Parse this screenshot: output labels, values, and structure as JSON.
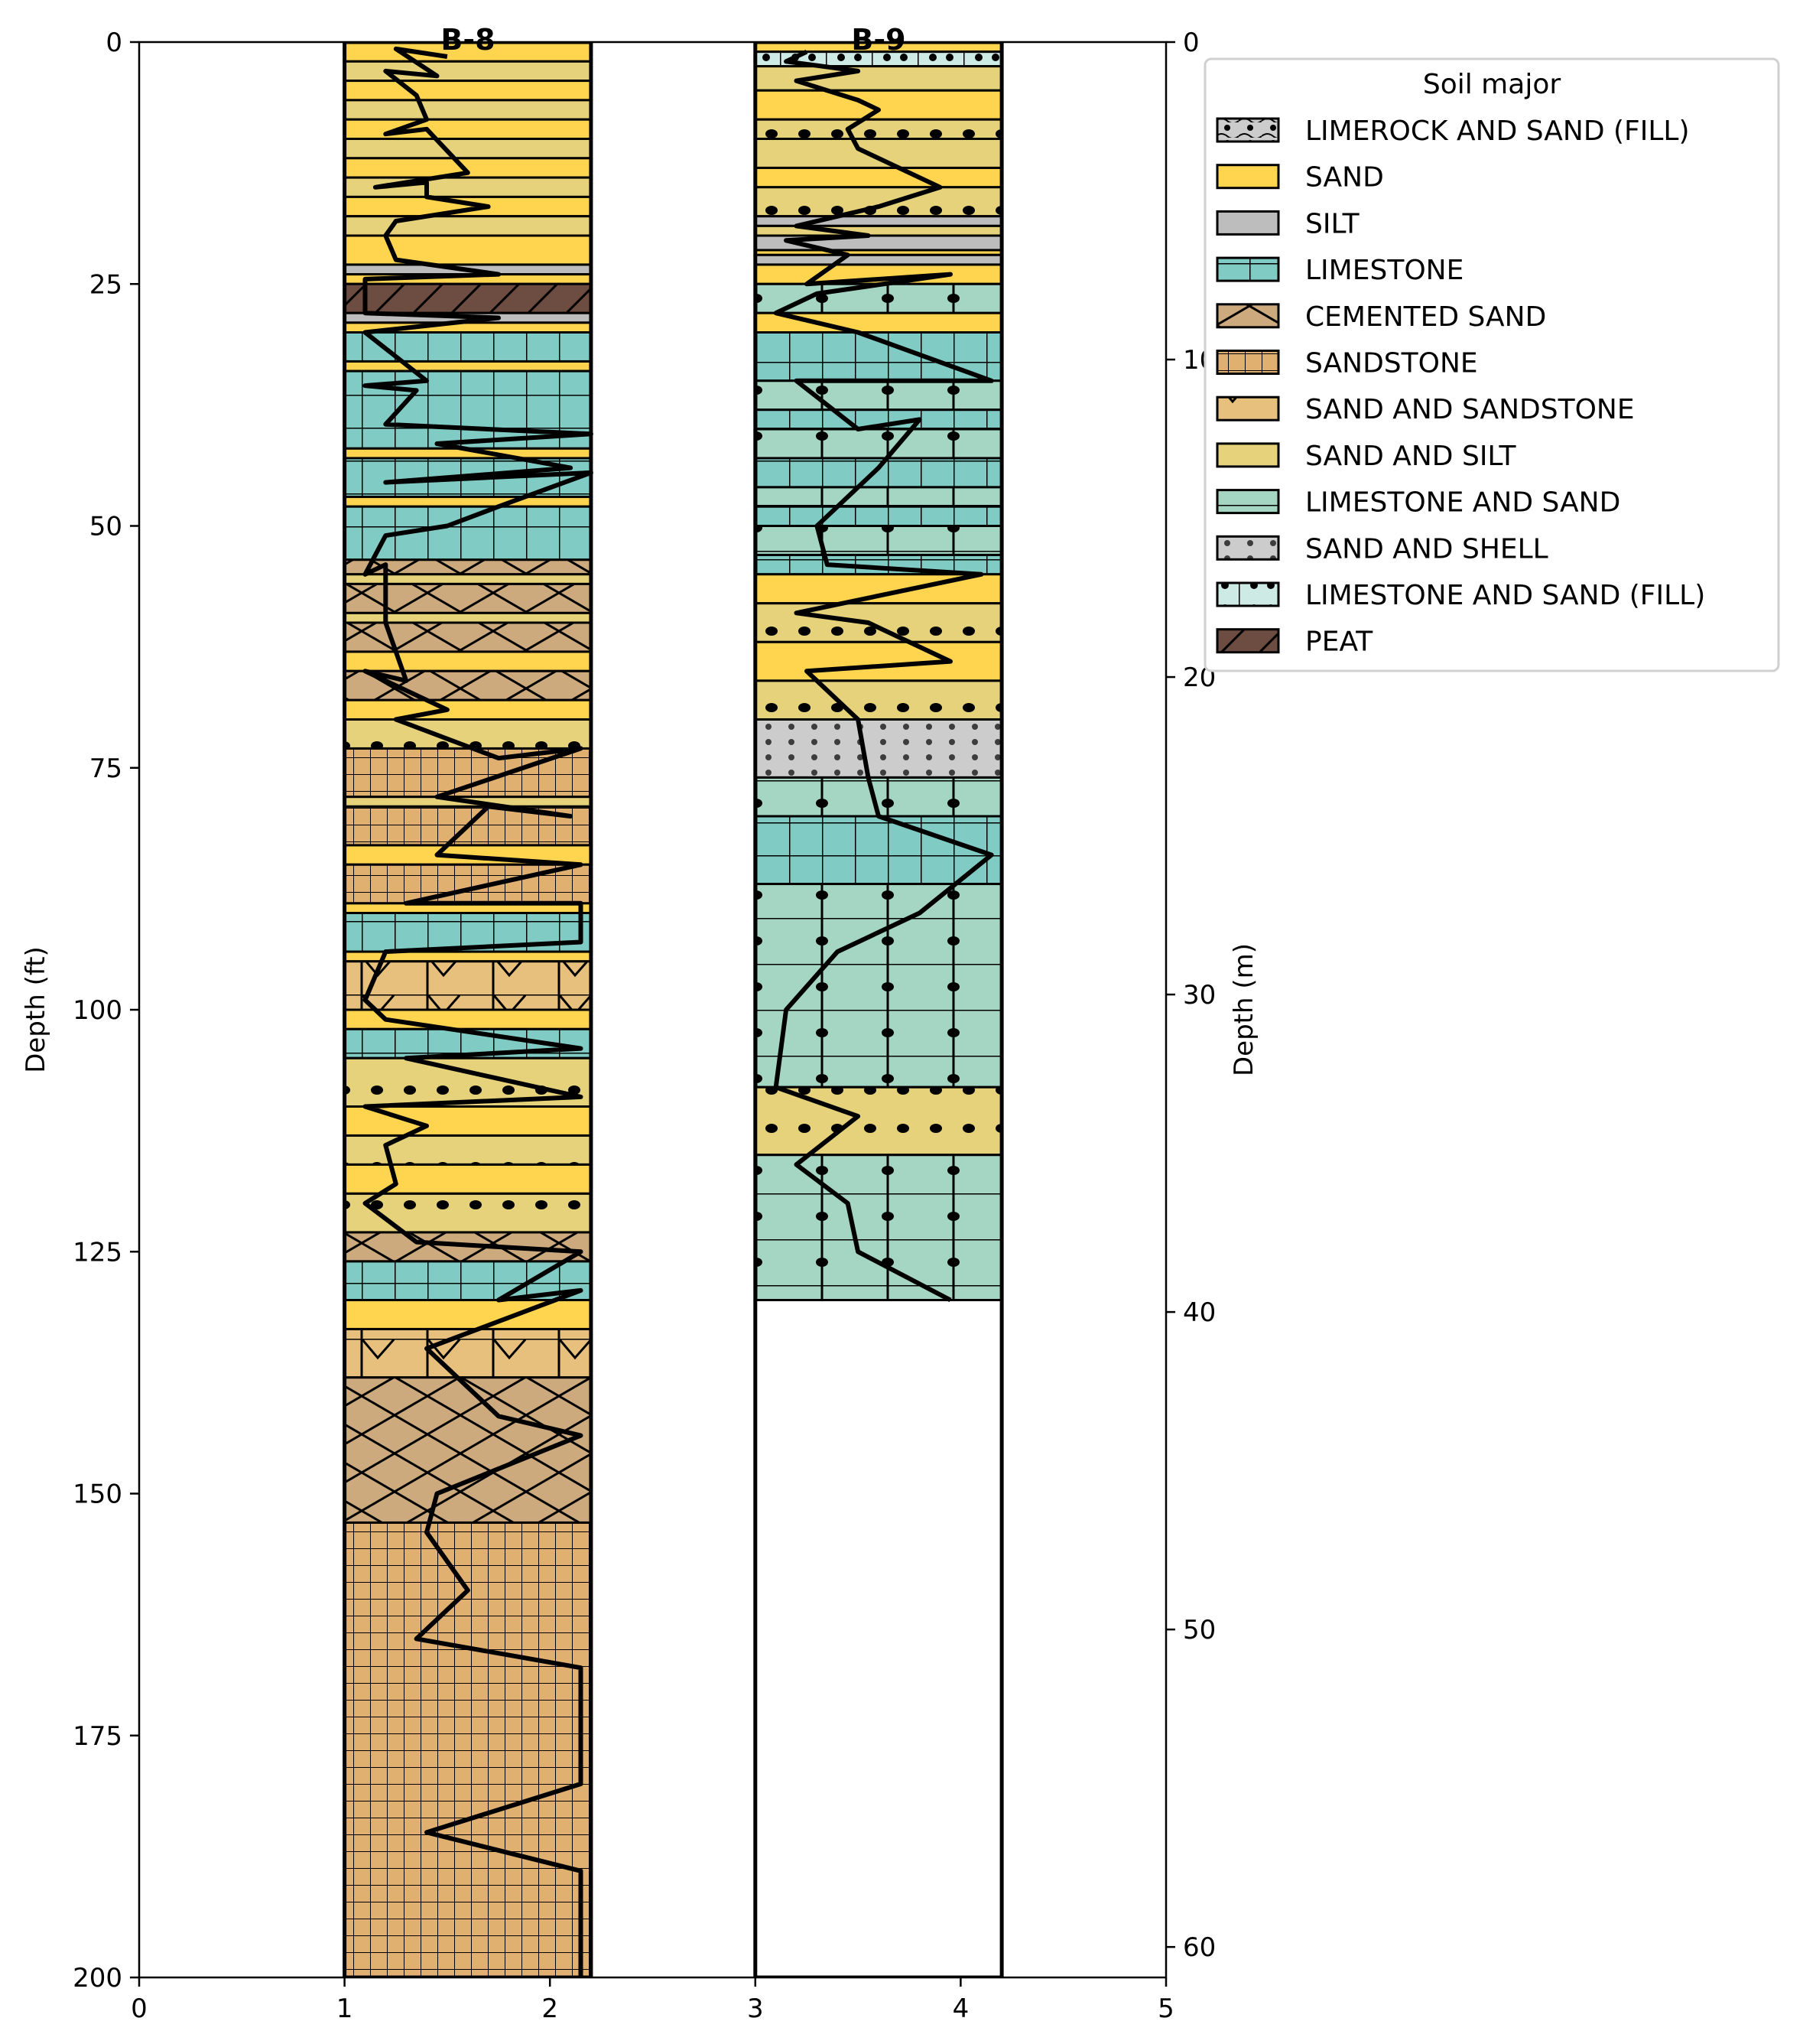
{
  "chart_data": {
    "type": "boring-log",
    "boreholes": [
      {
        "name": "B-8",
        "x_range": [
          1,
          2.2
        ],
        "layers": [
          [
            0,
            2,
            "SAND"
          ],
          [
            2,
            4,
            "SAND AND SILT"
          ],
          [
            4,
            6,
            "SAND"
          ],
          [
            6,
            8,
            "SAND AND SILT"
          ],
          [
            8,
            10,
            "SAND"
          ],
          [
            10,
            12,
            "SAND AND SILT"
          ],
          [
            12,
            14,
            "SAND"
          ],
          [
            14,
            16,
            "SAND AND SILT"
          ],
          [
            16,
            18,
            "SAND"
          ],
          [
            18,
            20,
            "SAND AND SILT"
          ],
          [
            20,
            23,
            "SAND"
          ],
          [
            23,
            24,
            "SILT"
          ],
          [
            24,
            25,
            "SAND"
          ],
          [
            25,
            28,
            "PEAT"
          ],
          [
            28,
            29,
            "SILT"
          ],
          [
            29,
            30,
            "SAND"
          ],
          [
            30,
            33,
            "LIMESTONE"
          ],
          [
            33,
            34,
            "SAND"
          ],
          [
            34,
            42,
            "LIMESTONE"
          ],
          [
            42,
            43,
            "SAND"
          ],
          [
            43,
            47,
            "LIMESTONE"
          ],
          [
            47,
            48,
            "SAND"
          ],
          [
            48,
            53.5,
            "LIMESTONE"
          ],
          [
            53.5,
            55,
            "CEMENTED SAND"
          ],
          [
            55,
            56,
            "SAND AND SILT"
          ],
          [
            56,
            59,
            "CEMENTED SAND"
          ],
          [
            59,
            60,
            "SAND AND SILT"
          ],
          [
            60,
            63,
            "CEMENTED SAND"
          ],
          [
            63,
            65,
            "SAND"
          ],
          [
            65,
            68,
            "CEMENTED SAND"
          ],
          [
            68,
            70,
            "SAND"
          ],
          [
            70,
            73,
            "SAND AND SILT"
          ],
          [
            73,
            78,
            "SANDSTONE"
          ],
          [
            78,
            79,
            "SAND AND SILT"
          ],
          [
            79,
            83,
            "SANDSTONE"
          ],
          [
            83,
            85,
            "SAND"
          ],
          [
            85,
            89,
            "SANDSTONE"
          ],
          [
            89,
            90,
            "SAND"
          ],
          [
            90,
            94,
            "LIMESTONE"
          ],
          [
            94,
            95,
            "SAND"
          ],
          [
            95,
            100,
            "SAND AND SANDSTONE"
          ],
          [
            100,
            102,
            "SAND"
          ],
          [
            102,
            105,
            "LIMESTONE"
          ],
          [
            105,
            110,
            "SAND AND SILT"
          ],
          [
            110,
            113,
            "SAND"
          ],
          [
            113,
            116,
            "SAND AND SILT"
          ],
          [
            116,
            119,
            "SAND"
          ],
          [
            119,
            123,
            "SAND AND SILT"
          ],
          [
            123,
            126,
            "CEMENTED SAND"
          ],
          [
            126,
            130,
            "LIMESTONE"
          ],
          [
            130,
            133,
            "SAND"
          ],
          [
            133,
            138,
            "SAND AND SANDSTONE"
          ],
          [
            138,
            153,
            "CEMENTED SAND"
          ],
          [
            153,
            200,
            "SANDSTONE"
          ]
        ],
        "curve": [
          [
            1.5,
            1.5
          ],
          [
            1.25,
            0.7
          ],
          [
            1.45,
            3.5
          ],
          [
            1.2,
            3
          ],
          [
            1.35,
            5.5
          ],
          [
            1.4,
            8
          ],
          [
            1.2,
            9.5
          ],
          [
            1.4,
            9
          ],
          [
            1.6,
            13.5
          ],
          [
            1.15,
            15
          ],
          [
            1.4,
            14.5
          ],
          [
            1.4,
            16
          ],
          [
            1.7,
            17
          ],
          [
            1.25,
            18.5
          ],
          [
            1.2,
            20
          ],
          [
            1.25,
            22.5
          ],
          [
            1.75,
            24
          ],
          [
            1.1,
            24.5
          ],
          [
            1.1,
            28
          ],
          [
            1.75,
            28.5
          ],
          [
            1.1,
            30
          ],
          [
            1.4,
            35
          ],
          [
            1.1,
            35.5
          ],
          [
            1.35,
            36
          ],
          [
            1.2,
            39.5
          ],
          [
            2.2,
            40.5
          ],
          [
            1.45,
            41.5
          ],
          [
            2.1,
            44
          ],
          [
            1.2,
            45.5
          ],
          [
            2.2,
            44.5
          ],
          [
            1.75,
            48
          ],
          [
            1.5,
            50
          ],
          [
            1.2,
            51
          ],
          [
            1.1,
            55
          ],
          [
            1.2,
            54
          ],
          [
            1.2,
            60
          ],
          [
            1.25,
            63
          ],
          [
            1.3,
            66
          ],
          [
            1.1,
            65
          ],
          [
            1.5,
            69
          ],
          [
            1.25,
            70
          ],
          [
            1.75,
            74
          ],
          [
            2.15,
            73
          ],
          [
            1.45,
            78
          ],
          [
            2.1,
            80
          ],
          [
            1.7,
            79
          ],
          [
            1.45,
            84
          ],
          [
            2.15,
            85
          ],
          [
            1.3,
            89
          ],
          [
            2.15,
            89
          ],
          [
            2.15,
            93
          ],
          [
            1.2,
            94
          ],
          [
            1.1,
            99
          ],
          [
            1.2,
            101
          ],
          [
            2.15,
            104
          ],
          [
            1.3,
            105
          ],
          [
            2.15,
            109
          ],
          [
            1.1,
            110
          ],
          [
            1.4,
            112
          ],
          [
            1.2,
            114
          ],
          [
            1.25,
            118
          ],
          [
            1.1,
            120
          ],
          [
            1.35,
            124
          ],
          [
            2.15,
            125
          ],
          [
            1.75,
            130
          ],
          [
            2.15,
            129
          ],
          [
            1.4,
            135
          ],
          [
            1.75,
            142
          ],
          [
            2.15,
            144
          ],
          [
            1.45,
            150
          ],
          [
            1.4,
            154
          ],
          [
            1.6,
            160
          ],
          [
            1.35,
            165
          ],
          [
            2.15,
            168
          ],
          [
            2.15,
            180
          ],
          [
            1.4,
            185
          ],
          [
            2.15,
            189
          ],
          [
            2.15,
            200
          ]
        ]
      },
      {
        "name": "B-9",
        "x_range": [
          3,
          4.2
        ],
        "layers": [
          [
            0,
            1,
            "SAND"
          ],
          [
            1,
            2.5,
            "LIMESTONE AND SAND (FILL)"
          ],
          [
            2.5,
            5,
            "SAND AND SILT"
          ],
          [
            5,
            8,
            "SAND"
          ],
          [
            8,
            10,
            "SAND AND SILT"
          ],
          [
            10,
            13,
            "SAND AND SILT"
          ],
          [
            13,
            15,
            "SAND"
          ],
          [
            15,
            18,
            "SAND AND SILT"
          ],
          [
            18,
            19,
            "SILT"
          ],
          [
            19,
            20,
            "SAND AND SILT"
          ],
          [
            20,
            21.5,
            "SILT"
          ],
          [
            21.5,
            22,
            "SAND"
          ],
          [
            22,
            23,
            "SILT"
          ],
          [
            23,
            25,
            "SAND"
          ],
          [
            25,
            28,
            "LIMESTONE AND SAND"
          ],
          [
            28,
            30,
            "SAND"
          ],
          [
            30,
            35,
            "LIMESTONE"
          ],
          [
            35,
            38,
            "LIMESTONE AND SAND"
          ],
          [
            38,
            40,
            "LIMESTONE"
          ],
          [
            40,
            43,
            "LIMESTONE AND SAND"
          ],
          [
            43,
            46,
            "LIMESTONE"
          ],
          [
            46,
            48,
            "LIMESTONE AND SAND"
          ],
          [
            48,
            50,
            "LIMESTONE"
          ],
          [
            50,
            53,
            "LIMESTONE AND SAND"
          ],
          [
            53,
            55,
            "LIMESTONE"
          ],
          [
            55,
            58,
            "SAND"
          ],
          [
            58,
            62,
            "SAND AND SILT"
          ],
          [
            62,
            66,
            "SAND"
          ],
          [
            66,
            70,
            "SAND AND SILT"
          ],
          [
            70,
            76,
            "SAND AND SHELL"
          ],
          [
            76,
            80,
            "LIMESTONE AND SAND"
          ],
          [
            80,
            87,
            "LIMESTONE"
          ],
          [
            87,
            108,
            "LIMESTONE AND SAND"
          ],
          [
            108,
            115,
            "SAND AND SILT"
          ],
          [
            115,
            130,
            "LIMESTONE AND SAND"
          ]
        ],
        "curve": [
          [
            3.25,
            1
          ],
          [
            3.15,
            2
          ],
          [
            3.5,
            3
          ],
          [
            3.2,
            4
          ],
          [
            3.5,
            6
          ],
          [
            3.6,
            7
          ],
          [
            3.45,
            9
          ],
          [
            3.5,
            11
          ],
          [
            3.9,
            15
          ],
          [
            3.6,
            17
          ],
          [
            3.2,
            19
          ],
          [
            3.55,
            20
          ],
          [
            3.15,
            20.5
          ],
          [
            3.45,
            22
          ],
          [
            3.25,
            25
          ],
          [
            3.95,
            24
          ],
          [
            3.3,
            26
          ],
          [
            3.1,
            28
          ],
          [
            3.5,
            30
          ],
          [
            4.15,
            35
          ],
          [
            3.2,
            35
          ],
          [
            3.5,
            40
          ],
          [
            3.8,
            39
          ],
          [
            3.6,
            44
          ],
          [
            3.3,
            50
          ],
          [
            3.35,
            54
          ],
          [
            4.1,
            55
          ],
          [
            3.2,
            59
          ],
          [
            3.55,
            60
          ],
          [
            3.95,
            64
          ],
          [
            3.25,
            65
          ],
          [
            3.5,
            70
          ],
          [
            3.55,
            76
          ],
          [
            3.6,
            80
          ],
          [
            4.15,
            84
          ],
          [
            3.8,
            90
          ],
          [
            3.4,
            94
          ],
          [
            3.15,
            100
          ],
          [
            3.1,
            108
          ],
          [
            3.5,
            111
          ],
          [
            3.2,
            116
          ],
          [
            3.45,
            120
          ],
          [
            3.5,
            125
          ],
          [
            3.95,
            130
          ]
        ]
      }
    ],
    "xlim": [
      0,
      5
    ],
    "ylim": [
      0,
      200
    ],
    "x_ticks": [
      "0",
      "1",
      "2",
      "3",
      "4",
      "5"
    ],
    "y_ticks": [
      "0",
      "25",
      "50",
      "75",
      "100",
      "125",
      "150",
      "175",
      "200"
    ],
    "y2_ticks": [
      "0",
      "10",
      "20",
      "30",
      "40",
      "50",
      "60"
    ],
    "y2lim_m": [
      0,
      60.96
    ],
    "ylabel": "Depth (ft)",
    "y2label": "Depth (m)",
    "legend": {
      "title": "Soil major",
      "placement": "upper-right-outside",
      "entries": [
        "LIMEROCK AND SAND (FILL)",
        "SAND",
        "SILT",
        "LIMESTONE",
        "CEMENTED SAND",
        "SANDSTONE",
        "SAND AND SANDSTONE",
        "SAND AND SILT",
        "LIMESTONE AND SAND",
        "SAND AND SHELL",
        "LIMESTONE AND SAND (FILL)",
        "PEAT"
      ]
    },
    "colors": {
      "LIMEROCK AND SAND (FILL)": "#cccccc",
      "SAND": "#ffd54f",
      "SILT": "#bdbdbd",
      "LIMESTONE": "#80cbc4",
      "CEMENTED SAND": "#cdaa7d",
      "SANDSTONE": "#e0b070",
      "SAND AND SANDSTONE": "#e8c07e",
      "SAND AND SILT": "#e6d27a",
      "LIMESTONE AND SAND": "#a5d6c3",
      "SAND AND SHELL": "#cccccc",
      "LIMESTONE AND SAND (FILL)": "#cdeae5",
      "PEAT": "#6d4c41"
    }
  }
}
